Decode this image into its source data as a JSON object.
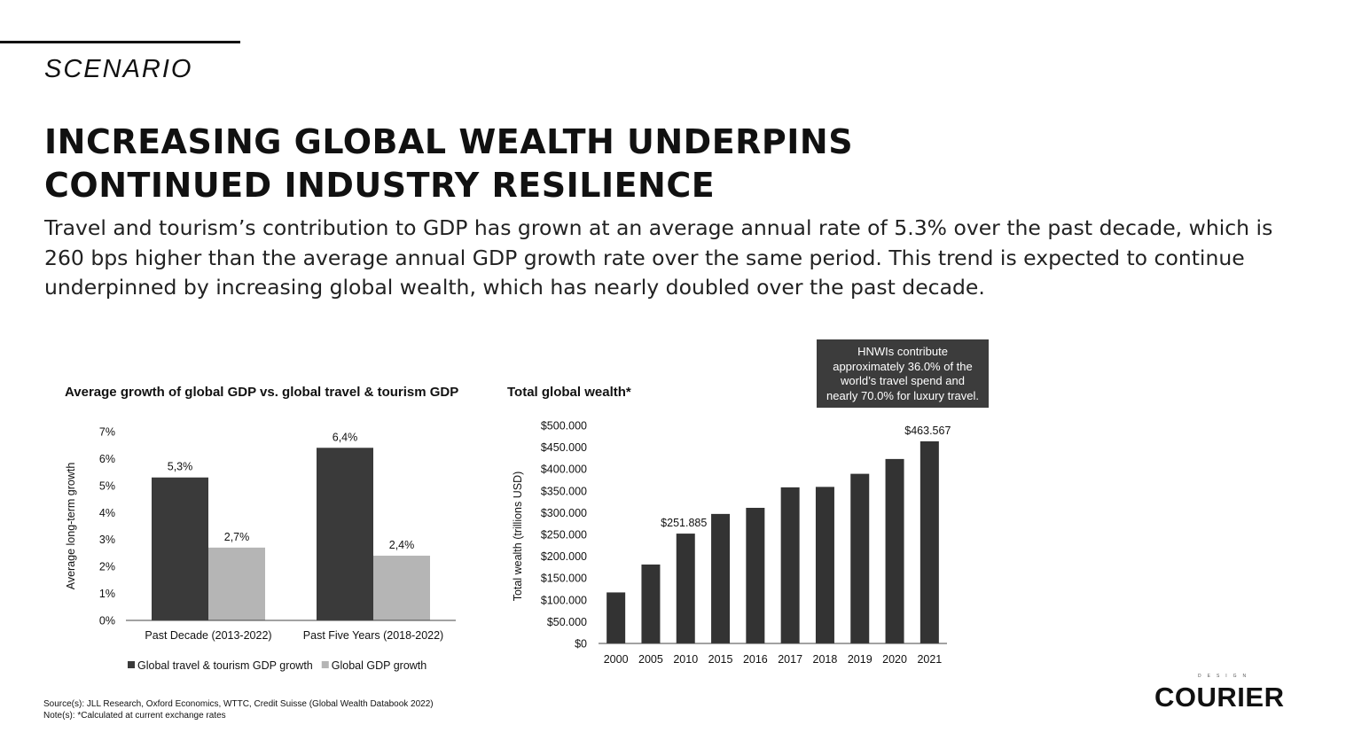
{
  "page": {
    "eyebrow": "SCENARIO",
    "headline_lines": [
      "INCREASING GLOBAL WEALTH UNDERPINS",
      "CONTINUED INDUSTRY RESILIENCE"
    ],
    "body": "Travel and tourism’s contribution to GDP has grown at an average annual rate of 5.3% over the past decade, which is 260 bps higher than the average annual GDP growth rate over the same period. This trend is expected to continue underpinned by increasing global wealth, which has nearly doubled over the past decade.",
    "callout_lines": [
      "HNWIs contribute",
      "approximately 36.0% of the",
      "world’s travel spend and",
      "nearly 70.0% for luxury travel."
    ],
    "footnotes": [
      "Source(s): JLL Research, Oxford Economics, WTTC, Credit Suisse (Global Wealth Databook 2022)",
      "Note(s): *Calculated at current exchange rates"
    ],
    "logo": {
      "small": "DESIGN",
      "word": "COURIER"
    }
  },
  "colors": {
    "dark_bar": "#3a3a3a",
    "light_bar": "#b5b5b5",
    "axis": "#444444",
    "text": "#111111"
  },
  "chart_data": [
    {
      "type": "bar",
      "title": "Average growth of global GDP vs. global travel & tourism GDP",
      "xlabel": "",
      "ylabel": "Average long-term growth",
      "categories": [
        "Past Decade (2013-2022)",
        "Past Five Years (2018-2022)"
      ],
      "series": [
        {
          "name": "Global travel & tourism GDP growth",
          "values": [
            5.3,
            6.4
          ],
          "labels": [
            "5,3%",
            "6,4%"
          ],
          "color": "#3a3a3a"
        },
        {
          "name": "Global GDP growth",
          "values": [
            2.7,
            2.4
          ],
          "labels": [
            "2,7%",
            "2,4%"
          ],
          "color": "#b5b5b5"
        }
      ],
      "ylim": [
        0,
        7
      ],
      "yticks": [
        {
          "value": 0,
          "label": "0%"
        },
        {
          "value": 1,
          "label": "1%"
        },
        {
          "value": 2,
          "label": "2%"
        },
        {
          "value": 3,
          "label": "3%"
        },
        {
          "value": 4,
          "label": "4%"
        },
        {
          "value": 5,
          "label": "5%"
        },
        {
          "value": 6,
          "label": "6%"
        },
        {
          "value": 7,
          "label": "7%"
        }
      ],
      "grid": false,
      "legend": "bottom"
    },
    {
      "type": "bar",
      "title": "Total global wealth*",
      "xlabel": "",
      "ylabel": "Total wealth (trillions USD)",
      "categories": [
        "2000",
        "2005",
        "2010",
        "2015",
        "2016",
        "2017",
        "2018",
        "2019",
        "2020",
        "2021"
      ],
      "values": [
        117000,
        181000,
        251885,
        297000,
        311000,
        358000,
        359000,
        389000,
        423000,
        463567
      ],
      "data_labels": [
        {
          "index": 2,
          "text": "$251.885"
        },
        {
          "index": 9,
          "text": "$463.567"
        }
      ],
      "ylim": [
        0,
        500000
      ],
      "yticks": [
        {
          "value": 0,
          "label": "$0"
        },
        {
          "value": 50000,
          "label": "$50.000"
        },
        {
          "value": 100000,
          "label": "$100.000"
        },
        {
          "value": 150000,
          "label": "$150.000"
        },
        {
          "value": 200000,
          "label": "$200.000"
        },
        {
          "value": 250000,
          "label": "$250.000"
        },
        {
          "value": 300000,
          "label": "$300.000"
        },
        {
          "value": 350000,
          "label": "$350.000"
        },
        {
          "value": 400000,
          "label": "$400.000"
        },
        {
          "value": 450000,
          "label": "$450.000"
        },
        {
          "value": 500000,
          "label": "$500.000"
        }
      ],
      "grid": false,
      "color": "#333333"
    }
  ]
}
